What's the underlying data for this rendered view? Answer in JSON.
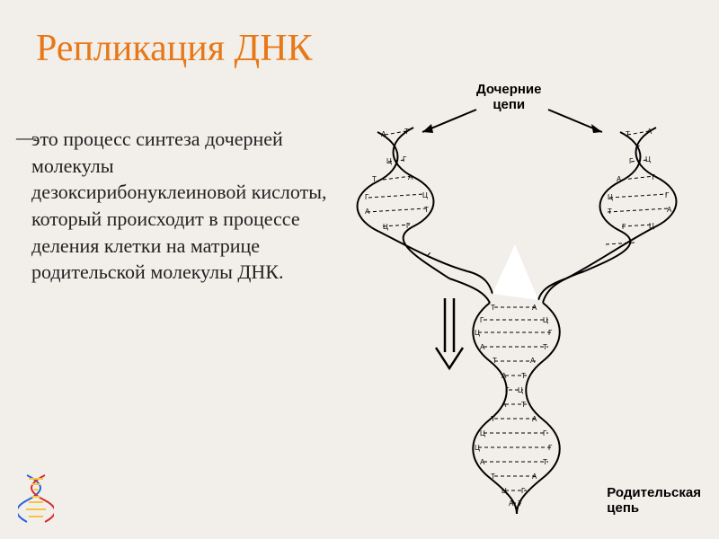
{
  "title": "Репликация ДНК",
  "dash": "—",
  "body_text": "это процесс синтеза дочерней молекулы дезоксирибонуклеиновой кислоты, который происходит в процессе деления клетки на матрице родительской молекулы ДНК.",
  "labels": {
    "top": "Дочерние\nцепи",
    "bottom": "Родительская\nцепь"
  },
  "colors": {
    "background": "#f2efea",
    "title": "#e87817",
    "text": "#222222",
    "diagram_stroke": "#000000",
    "small_dna_blue": "#2962d9",
    "small_dna_red": "#d92929",
    "small_dna_rungs": "#f5c542"
  },
  "base_pairs": {
    "left_daughter": [
      "А:Т",
      "Ц:Г",
      "Т:А",
      "Г:Ц",
      "А:Т",
      "Ц:Г",
      "Т:А",
      "А:Т",
      "Г:Ц",
      "Ц:Г"
    ],
    "right_daughter": [
      "Т:А",
      "Г:Ц",
      "А:Т",
      "Ц:Г",
      "Т:А",
      "Г:Ц",
      "А:Т",
      "Т:А",
      "Ц:Г",
      "Г:Ц"
    ],
    "parent": [
      "Т:А",
      "Г:Ц",
      "Ц:Г",
      "А:Т",
      "Т:А",
      "А:Т",
      "Г:Ц",
      "А:Т",
      "Т:А",
      "Ц:Г",
      "Ц:Г",
      "А:Т",
      "Т:А",
      "Ц:Г",
      "А:Т",
      "Т:А"
    ]
  }
}
